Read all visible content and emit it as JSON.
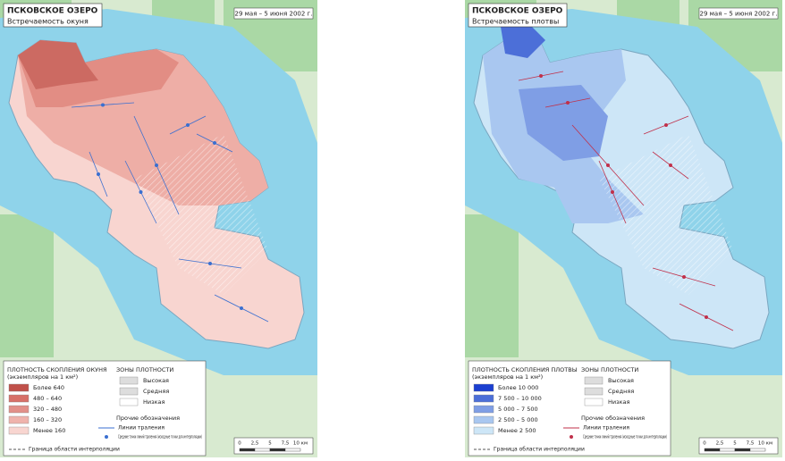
{
  "maps": [
    {
      "title": "ПСКОВСКОЕ ОЗЕРО",
      "subtitle": "Встречаемость окуня",
      "date": "29 мая – 5 июня 2002 г.",
      "legend": {
        "title": "ПЛОТНОСТЬ СКОПЛЕНИЯ ОКУНЯ",
        "unit": "(экземпляров на 1 км²)",
        "classes": [
          "Более 640",
          "480 – 640",
          "320 – 480",
          "160 – 320",
          "Менее 160"
        ],
        "zones_title": "ЗОНЫ ПЛОТНОСТИ",
        "zones": [
          "Высокая",
          "Средняя",
          "Низкая"
        ],
        "other_title": "Прочие обозначения",
        "other": [
          "Линии траления",
          "Средние точки линий траления (исходные точки для интерполяции)"
        ],
        "boundary": "Граница области интерполяции"
      },
      "scale": [
        "0",
        "2,5",
        "5",
        "7,5",
        "10 км"
      ]
    },
    {
      "title": "ПСКОВСКОЕ ОЗЕРО",
      "subtitle": "Встречаемость плотвы",
      "date": "29 мая – 5 июня 2002 г.",
      "legend": {
        "title": "ПЛОТНОСТЬ СКОПЛЕНИЯ ПЛОТВЫ",
        "unit": "(экземпляров на 1 км²)",
        "classes": [
          "Более 10 000",
          "7 500 – 10 000",
          "5 000 – 7 500",
          "2 500 – 5 000",
          "Менее 2 500"
        ],
        "zones_title": "ЗОНЫ ПЛОТНОСТИ",
        "zones": [
          "Высокая",
          "Средняя",
          "Низкая"
        ],
        "other_title": "Прочие обозначения",
        "other": [
          "Линии траления",
          "Средние точки линий траления (исходные точки для интерполяции)"
        ],
        "boundary": "Граница области интерполяции"
      },
      "scale": [
        "0",
        "2,5",
        "5",
        "7,5",
        "10 км"
      ]
    }
  ]
}
